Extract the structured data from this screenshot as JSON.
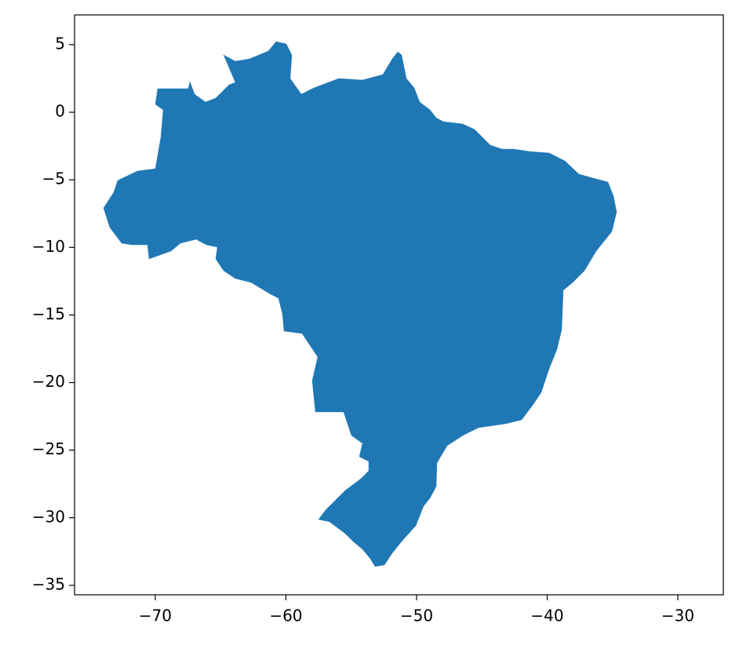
{
  "chart_data": {
    "type": "map",
    "xlim": [
      -76.18,
      -26.52
    ],
    "ylim": [
      -35.7,
      7.2
    ],
    "xticks": [
      {
        "value": -70,
        "label": "−70"
      },
      {
        "value": -60,
        "label": "−60"
      },
      {
        "value": -50,
        "label": "−50"
      },
      {
        "value": -40,
        "label": "−40"
      },
      {
        "value": -30,
        "label": "−30"
      }
    ],
    "yticks": [
      5,
      0,
      {
        "value": -5,
        "label": "−5"
      },
      {
        "value": -10,
        "label": "−10"
      },
      {
        "value": -15,
        "label": "−15"
      },
      {
        "value": -20,
        "label": "−20"
      },
      {
        "value": -25,
        "label": "−25"
      },
      {
        "value": -30,
        "label": "−30"
      },
      {
        "value": -35,
        "label": "−35"
      }
    ],
    "color": "#1f77b4"
  }
}
